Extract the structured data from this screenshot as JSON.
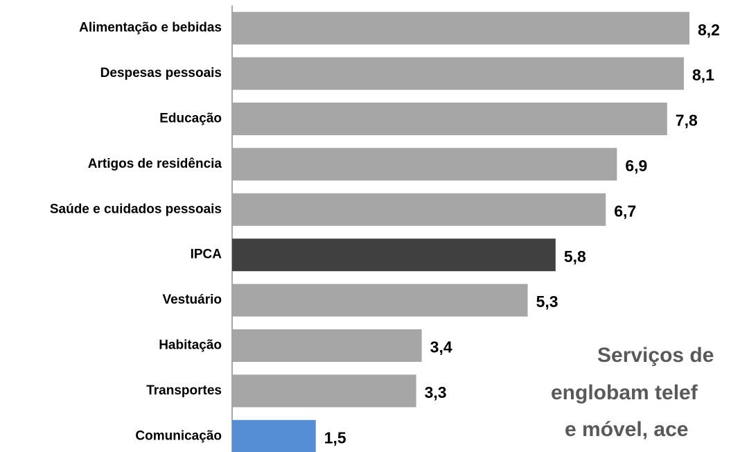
{
  "chart_data": {
    "type": "bar",
    "orientation": "horizontal",
    "categories": [
      "Alimentação e bebidas",
      "Despesas pessoais",
      "Educação",
      "Artigos de residência",
      "Saúde e cuidados pessoais",
      "IPCA",
      "Vestuário",
      "Habitação",
      "Transportes",
      "Comunicação"
    ],
    "values": [
      8.2,
      8.1,
      7.8,
      6.9,
      6.7,
      5.8,
      5.3,
      3.4,
      3.3,
      1.5
    ],
    "value_labels": [
      "8,2",
      "8,1",
      "7,8",
      "6,9",
      "6,7",
      "5,8",
      "5,3",
      "3,4",
      "3,3",
      "1,5"
    ],
    "colors": [
      "#a6a6a6",
      "#a6a6a6",
      "#a6a6a6",
      "#a6a6a6",
      "#a6a6a6",
      "#404040",
      "#a6a6a6",
      "#a6a6a6",
      "#a6a6a6",
      "#558ed5"
    ],
    "annotation": [
      "Serviços de",
      "englobam telef",
      "e móvel, ace"
    ]
  }
}
